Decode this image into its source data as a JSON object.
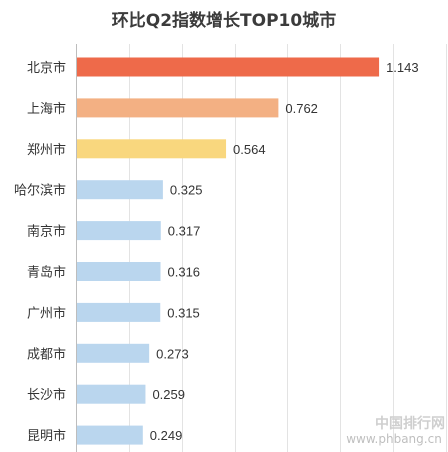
{
  "chart_data": {
    "type": "bar",
    "orientation": "horizontal",
    "title": "环比Q2指数增长TOP10城市",
    "categories": [
      "北京市",
      "上海市",
      "郑州市",
      "哈尔滨市",
      "南京市",
      "青岛市",
      "广州市",
      "成都市",
      "长沙市",
      "昆明市"
    ],
    "values": [
      1.143,
      0.762,
      0.564,
      0.325,
      0.317,
      0.316,
      0.315,
      0.273,
      0.259,
      0.249
    ],
    "value_labels": [
      "1.143",
      "0.762",
      "0.564",
      "0.325",
      "0.317",
      "0.316",
      "0.315",
      "0.273",
      "0.259",
      "0.249"
    ],
    "colors": [
      "#ee6a4a",
      "#f3b083",
      "#f9d77e",
      "#bad6ee",
      "#bad6ee",
      "#bad6ee",
      "#bad6ee",
      "#bad6ee",
      "#bad6ee",
      "#bad6ee"
    ],
    "xlim": [
      0,
      1.4
    ],
    "grid": true,
    "xlabel": "",
    "ylabel": ""
  },
  "watermark": {
    "line1": "中国排行网",
    "line2": "www.phbang.cn"
  }
}
